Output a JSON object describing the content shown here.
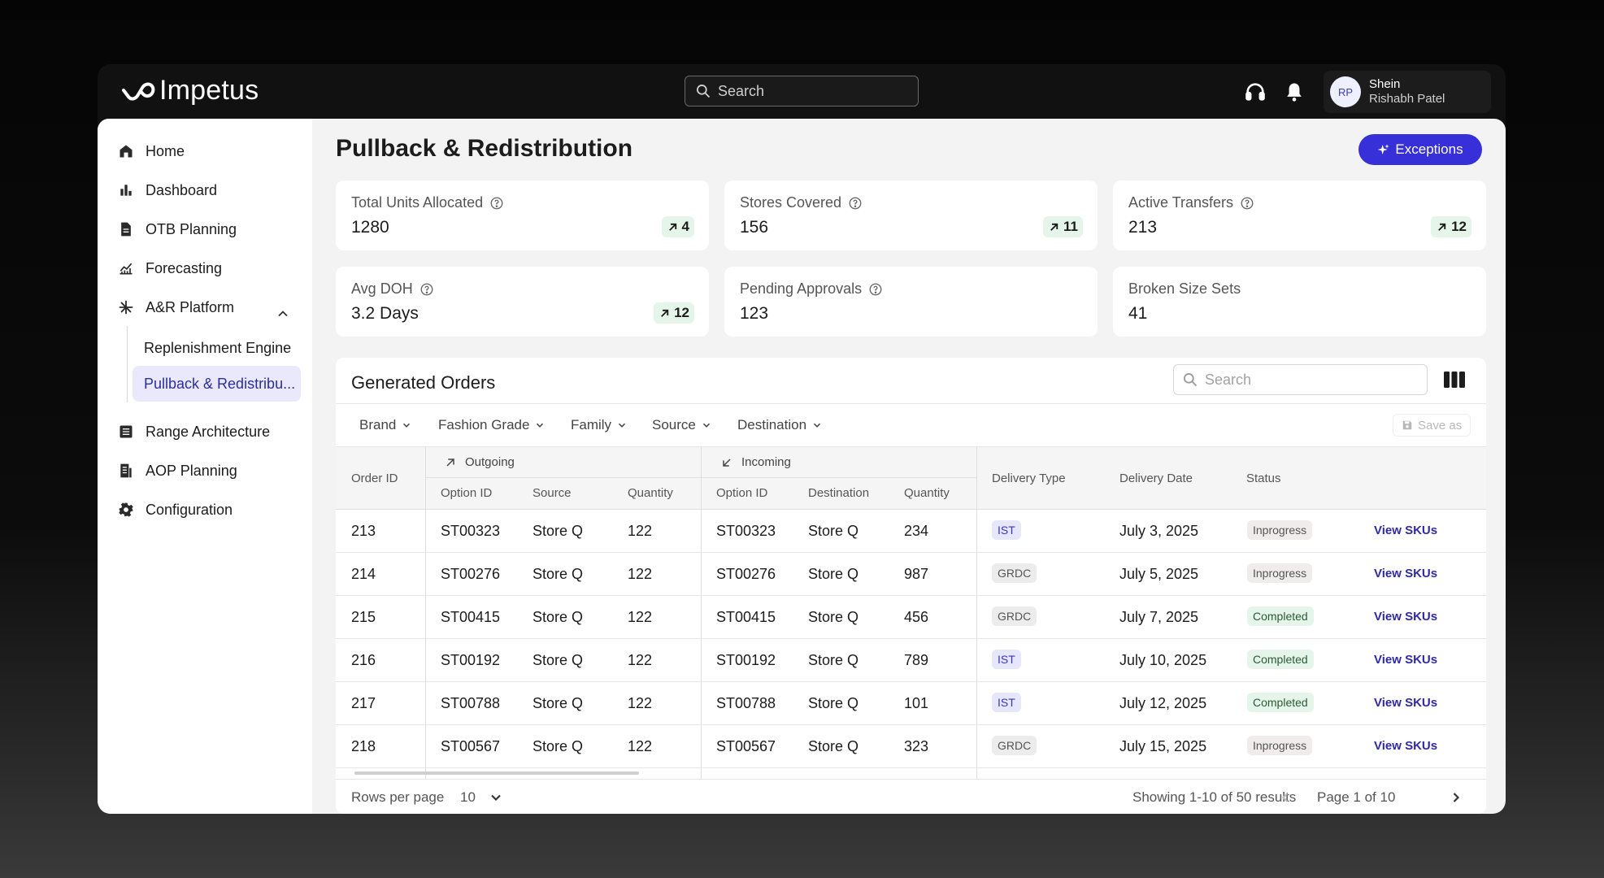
{
  "app": {
    "name": "Impetus"
  },
  "topbar": {
    "search_placeholder": "Search",
    "user": {
      "initials": "RP",
      "org": "Shein",
      "name": "Rishabh Patel"
    }
  },
  "sidebar": {
    "items": [
      {
        "label": "Home",
        "icon": "home-icon"
      },
      {
        "label": "Dashboard",
        "icon": "bar-chart-icon"
      },
      {
        "label": "OTB Planning",
        "icon": "document-icon"
      },
      {
        "label": "Forecasting",
        "icon": "line-chart-icon"
      },
      {
        "label": "A&R Platform",
        "icon": "network-icon",
        "expanded": true
      },
      {
        "label": "Range Architecture",
        "icon": "list-icon"
      },
      {
        "label": "AOP Planning",
        "icon": "report-icon"
      },
      {
        "label": "Configuration",
        "icon": "gear-icon"
      }
    ],
    "sub_items": [
      {
        "label": "Replenishment Engine",
        "active": false
      },
      {
        "label": "Pullback & Redistribu...",
        "active": true
      }
    ]
  },
  "page": {
    "title": "Pullback & Redistribution",
    "exceptions_label": "Exceptions"
  },
  "kpis": [
    {
      "label": "Total Units Allocated",
      "value": "1280",
      "badge": "4",
      "has_info": true
    },
    {
      "label": "Stores Covered",
      "value": "156",
      "badge": "11",
      "has_info": true
    },
    {
      "label": "Active Transfers",
      "value": "213",
      "badge": "12",
      "has_info": true
    },
    {
      "label": "Avg DOH",
      "value": "3.2 Days",
      "badge": "12",
      "has_info": true
    },
    {
      "label": "Pending Approvals",
      "value": "123",
      "badge": "",
      "has_info": true
    },
    {
      "label": "Broken Size Sets",
      "value": "41",
      "badge": "",
      "has_info": false
    }
  ],
  "orders": {
    "title": "Generated Orders",
    "search_placeholder": "Search",
    "filters": [
      "Brand",
      "Fashion Grade",
      "Family",
      "Source",
      "Destination"
    ],
    "save_as": "Save as",
    "headers": {
      "order_id": "Order ID",
      "outgoing": "Outgoing",
      "incoming": "Incoming",
      "option_id": "Option ID",
      "source": "Source",
      "quantity": "Quantity",
      "destination": "Destination",
      "delivery_type": "Delivery Type",
      "delivery_date": "Delivery Date",
      "status": "Status"
    },
    "rows": [
      {
        "order_id": "213",
        "out_option": "ST00323",
        "source": "Store Q",
        "out_qty": "122",
        "in_option": "ST00323",
        "destination": "Store Q",
        "in_qty": "234",
        "delivery_type": "IST",
        "delivery_date": "July 3, 2025",
        "status": "Inprogress",
        "action": "View SKUs"
      },
      {
        "order_id": "214",
        "out_option": "ST00276",
        "source": "Store Q",
        "out_qty": "122",
        "in_option": "ST00276",
        "destination": "Store Q",
        "in_qty": "987",
        "delivery_type": "GRDC",
        "delivery_date": "July 5, 2025",
        "status": "Inprogress",
        "action": "View SKUs"
      },
      {
        "order_id": "215",
        "out_option": "ST00415",
        "source": "Store Q",
        "out_qty": "122",
        "in_option": "ST00415",
        "destination": "Store Q",
        "in_qty": "456",
        "delivery_type": "GRDC",
        "delivery_date": "July 7, 2025",
        "status": "Completed",
        "action": "View SKUs"
      },
      {
        "order_id": "216",
        "out_option": "ST00192",
        "source": "Store Q",
        "out_qty": "122",
        "in_option": "ST00192",
        "destination": "Store Q",
        "in_qty": "789",
        "delivery_type": "IST",
        "delivery_date": "July 10, 2025",
        "status": "Completed",
        "action": "View SKUs"
      },
      {
        "order_id": "217",
        "out_option": "ST00788",
        "source": "Store Q",
        "out_qty": "122",
        "in_option": "ST00788",
        "destination": "Store Q",
        "in_qty": "101",
        "delivery_type": "IST",
        "delivery_date": "July 12, 2025",
        "status": "Completed",
        "action": "View SKUs"
      },
      {
        "order_id": "218",
        "out_option": "ST00567",
        "source": "Store Q",
        "out_qty": "122",
        "in_option": "ST00567",
        "destination": "Store Q",
        "in_qty": "323",
        "delivery_type": "GRDC",
        "delivery_date": "July 15, 2025",
        "status": "Inprogress",
        "action": "View SKUs"
      }
    ],
    "footer": {
      "rows_per_page_label": "Rows per page",
      "rows_per_page_value": "10",
      "showing": "Showing 1-10 of 50 results",
      "page": "Page 1 of 10"
    }
  },
  "colors": {
    "accent": "#3730d8",
    "badge_green": "#e6f5ea",
    "ist_bg": "#e7e7fb"
  }
}
